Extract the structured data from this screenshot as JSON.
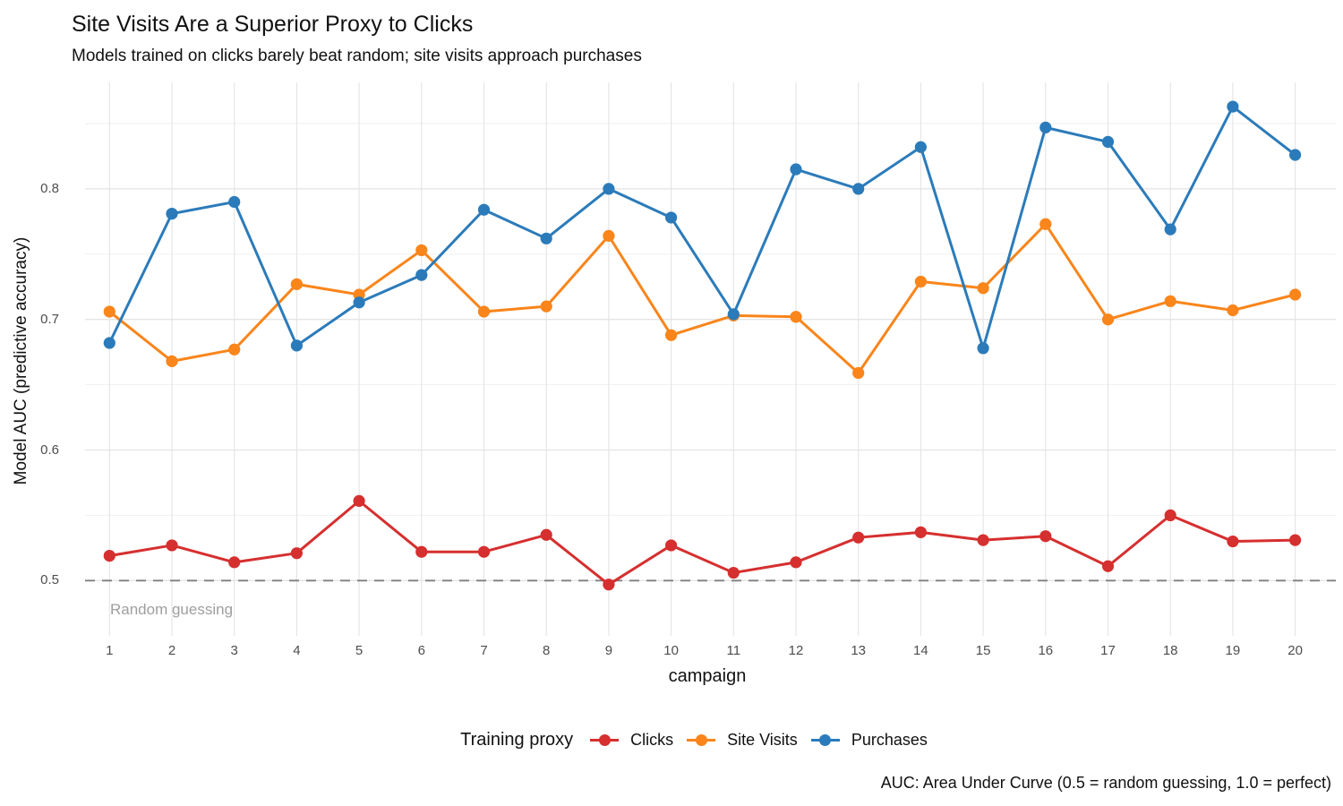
{
  "title": "Site Visits Are a Superior Proxy to Clicks",
  "subtitle": "Models trained on clicks barely beat random; site visits approach purchases",
  "caption": "AUC: Area Under Curve (0.5 = random guessing, 1.0 = perfect)",
  "axes": {
    "x_title": "campaign",
    "y_title": "Model AUC (predictive accuracy)",
    "x_ticks": [
      1,
      2,
      3,
      4,
      5,
      6,
      7,
      8,
      9,
      10,
      11,
      12,
      13,
      14,
      15,
      16,
      17,
      18,
      19,
      20
    ],
    "y_ticks": [
      "0.5",
      "0.6",
      "0.7",
      "0.8"
    ]
  },
  "annotation": {
    "label": "Random guessing"
  },
  "legend": {
    "title": "Training proxy",
    "items": [
      {
        "label": "Clicks",
        "color": "#d62f2f"
      },
      {
        "label": "Site Visits",
        "color": "#f9851b"
      },
      {
        "label": "Purchases",
        "color": "#2b7bba"
      }
    ]
  },
  "colors": {
    "clicks": "#d62f2f",
    "site_visits": "#f9851b",
    "purchases": "#2b7bba",
    "grid_major": "#e4e4e4",
    "grid_minor": "#efefef",
    "reference_line": "#7f7f7f",
    "axis_text": "#4d4d4d",
    "annotation_text": "#9e9e9e"
  },
  "chart_data": {
    "type": "line",
    "title": "Site Visits Are a Superior Proxy to Clicks",
    "subtitle": "Models trained on clicks barely beat random; site visits approach purchases",
    "xlabel": "campaign",
    "ylabel": "Model AUC (predictive accuracy)",
    "x": [
      1,
      2,
      3,
      4,
      5,
      6,
      7,
      8,
      9,
      10,
      11,
      12,
      13,
      14,
      15,
      16,
      17,
      18,
      19,
      20
    ],
    "series": [
      {
        "name": "Clicks",
        "color": "#d62f2f",
        "values": [
          0.519,
          0.527,
          0.514,
          0.521,
          0.561,
          0.522,
          0.522,
          0.535,
          0.497,
          0.527,
          0.506,
          0.514,
          0.533,
          0.537,
          0.531,
          0.534,
          0.511,
          0.55,
          0.53,
          0.531
        ]
      },
      {
        "name": "Site Visits",
        "color": "#f9851b",
        "values": [
          0.706,
          0.668,
          0.677,
          0.727,
          0.719,
          0.753,
          0.706,
          0.71,
          0.764,
          0.688,
          0.703,
          0.702,
          0.659,
          0.729,
          0.724,
          0.773,
          0.7,
          0.714,
          0.707,
          0.719
        ]
      },
      {
        "name": "Purchases",
        "color": "#2b7bba",
        "values": [
          0.682,
          0.781,
          0.79,
          0.68,
          0.713,
          0.734,
          0.784,
          0.762,
          0.8,
          0.778,
          0.704,
          0.815,
          0.8,
          0.832,
          0.678,
          0.847,
          0.836,
          0.769,
          0.863,
          0.826
        ]
      }
    ],
    "ylim": [
      0.458,
      0.882
    ],
    "y_major_ticks": [
      0.5,
      0.6,
      0.7,
      0.8
    ],
    "y_minor_ticks": [
      0.55,
      0.65,
      0.75,
      0.85
    ],
    "grid": true,
    "legend_position": "bottom",
    "reference_line": {
      "y": 0.5,
      "style": "dashed",
      "label": "Random guessing"
    }
  }
}
